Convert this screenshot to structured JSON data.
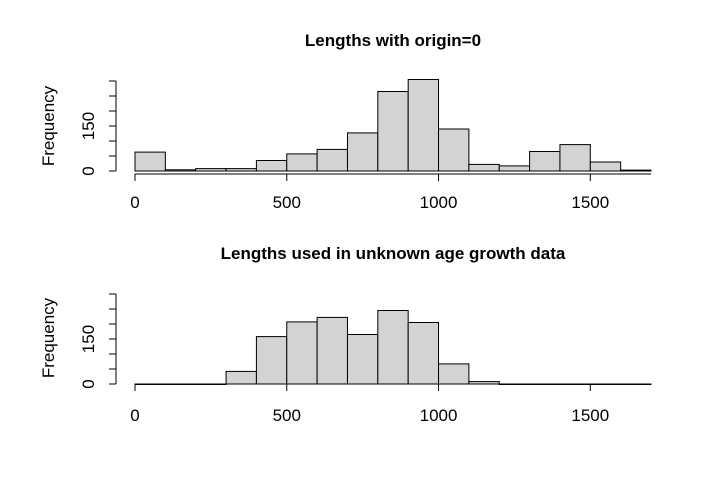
{
  "chart_data": [
    {
      "type": "bar",
      "title": "Lengths with origin=0",
      "xlabel": "",
      "ylabel": "Frequency",
      "bin_edges": [
        0,
        100,
        200,
        300,
        400,
        500,
        600,
        700,
        800,
        900,
        1000,
        1100,
        1200,
        1300,
        1400,
        1500,
        1600,
        1700
      ],
      "values": [
        63,
        4,
        8,
        8,
        35,
        57,
        72,
        127,
        265,
        305,
        140,
        22,
        17,
        65,
        88,
        30,
        3
      ],
      "xlim": [
        0,
        1700
      ],
      "ylim": [
        0,
        300
      ],
      "xticks": [
        0,
        500,
        1000,
        1500
      ],
      "xtick_labels": [
        "0",
        "500",
        "1000",
        "1500"
      ],
      "yticks": [
        0,
        50,
        100,
        150,
        200,
        250,
        300
      ],
      "ytick_labels": [
        "0",
        "",
        "",
        "150",
        "",
        "",
        ""
      ],
      "grid": false
    },
    {
      "type": "bar",
      "title": "Lengths used in unknown age growth data",
      "xlabel": "",
      "ylabel": "Frequency",
      "bin_edges": [
        0,
        100,
        200,
        300,
        400,
        500,
        600,
        700,
        800,
        900,
        1000,
        1100,
        1200,
        1300,
        1400,
        1500,
        1600,
        1700
      ],
      "values": [
        0,
        0,
        0,
        42,
        158,
        207,
        222,
        165,
        245,
        205,
        67,
        8,
        0,
        0,
        0,
        0,
        0
      ],
      "xlim": [
        0,
        1700
      ],
      "ylim": [
        0,
        300
      ],
      "xticks": [
        0,
        500,
        1000,
        1500
      ],
      "xtick_labels": [
        "0",
        "500",
        "1000",
        "1500"
      ],
      "yticks": [
        0,
        50,
        100,
        150,
        200,
        250,
        300
      ],
      "ytick_labels": [
        "0",
        "",
        "",
        "150",
        "",
        "",
        ""
      ],
      "grid": false
    }
  ]
}
